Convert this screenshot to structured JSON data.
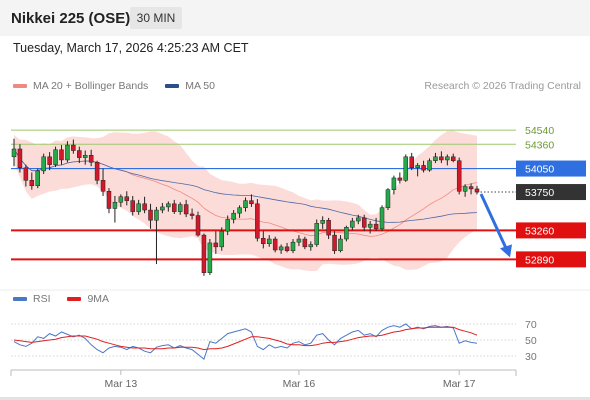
{
  "header": {
    "title": "Nikkei 225 (OSE)",
    "timeframe": "30 MIN",
    "datetime": "Tuesday, March 17, 2026 4:25:23 AM CET"
  },
  "legend": {
    "items": [
      {
        "label": "MA 20 + Bollinger Bands",
        "color": "#f08a80"
      },
      {
        "label": "MA 50",
        "color": "#2c4f8c"
      }
    ],
    "copyright": "Research © 2026 Trading Central"
  },
  "rsi_legend": {
    "items": [
      {
        "label": "RSI",
        "color": "#4a78c8"
      },
      {
        "label": "9MA",
        "color": "#e02020"
      }
    ]
  },
  "chart_data": {
    "type": "candlestick",
    "x_tick_labels": [
      "Mar 13",
      "Mar 16",
      "Mar 17"
    ],
    "y_range": [
      52550,
      54900
    ],
    "levels": [
      {
        "label": "54540",
        "value": 54540,
        "kind": "target",
        "color": "#9dc86a"
      },
      {
        "label": "54360",
        "value": 54360,
        "kind": "target",
        "color": "#9dc86a"
      },
      {
        "label": "54050",
        "value": 54050,
        "kind": "pivot",
        "color": "#2f6fdf"
      },
      {
        "label": "53750",
        "value": 53750,
        "kind": "last_price",
        "color": "#333333"
      },
      {
        "label": "53260",
        "value": 53260,
        "kind": "support",
        "color": "#e01010"
      },
      {
        "label": "52890",
        "value": 52890,
        "kind": "support",
        "color": "#e01010"
      }
    ],
    "forecast_arrow": {
      "from": 53750,
      "to": 52890,
      "color": "#2f6fdf"
    },
    "candles": [
      [
        54200,
        54430,
        54080,
        54300
      ],
      [
        54300,
        54360,
        54000,
        54060
      ],
      [
        54060,
        54100,
        53820,
        53900
      ],
      [
        53900,
        54000,
        53780,
        53830
      ],
      [
        53830,
        54050,
        53800,
        54020
      ],
      [
        54020,
        54240,
        53980,
        54200
      ],
      [
        54200,
        54260,
        54030,
        54100
      ],
      [
        54100,
        54330,
        54070,
        54290
      ],
      [
        54290,
        54350,
        54100,
        54160
      ],
      [
        54160,
        54400,
        54130,
        54350
      ],
      [
        54350,
        54420,
        54240,
        54280
      ],
      [
        54280,
        54330,
        54120,
        54190
      ],
      [
        54190,
        54280,
        54100,
        54220
      ],
      [
        54220,
        54290,
        54080,
        54130
      ],
      [
        54130,
        54150,
        53850,
        53900
      ],
      [
        53900,
        54050,
        53700,
        53760
      ],
      [
        53760,
        53800,
        53480,
        53540
      ],
      [
        53540,
        53700,
        53360,
        53620
      ],
      [
        53620,
        53720,
        53560,
        53690
      ],
      [
        53690,
        53760,
        53580,
        53640
      ],
      [
        53640,
        53700,
        53450,
        53500
      ],
      [
        53500,
        53650,
        53460,
        53600
      ],
      [
        53600,
        53690,
        53480,
        53520
      ],
      [
        53520,
        53600,
        53280,
        53390
      ],
      [
        53390,
        53560,
        52830,
        53520
      ],
      [
        53520,
        53610,
        53480,
        53560
      ],
      [
        53560,
        53630,
        53500,
        53600
      ],
      [
        53600,
        53650,
        53470,
        53500
      ],
      [
        53500,
        53620,
        53460,
        53590
      ],
      [
        53590,
        53650,
        53430,
        53470
      ],
      [
        53470,
        53540,
        53400,
        53450
      ],
      [
        53450,
        53500,
        53180,
        53200
      ],
      [
        53200,
        53220,
        52680,
        52720
      ],
      [
        52720,
        53150,
        52690,
        53100
      ],
      [
        53100,
        53250,
        52960,
        53050
      ],
      [
        53050,
        53300,
        53000,
        53250
      ],
      [
        53250,
        53450,
        53200,
        53400
      ],
      [
        53400,
        53520,
        53350,
        53480
      ],
      [
        53480,
        53580,
        53420,
        53550
      ],
      [
        53550,
        53680,
        53500,
        53640
      ],
      [
        53640,
        53720,
        53560,
        53600
      ],
      [
        53600,
        53660,
        53120,
        53160
      ],
      [
        53160,
        53250,
        53030,
        53090
      ],
      [
        53090,
        53200,
        53050,
        53150
      ],
      [
        53150,
        53180,
        52980,
        53010
      ],
      [
        53010,
        53080,
        52960,
        53050
      ],
      [
        53050,
        53100,
        52980,
        53000
      ],
      [
        53000,
        53150,
        52970,
        53110
      ],
      [
        53110,
        53200,
        53060,
        53150
      ],
      [
        53150,
        53180,
        53020,
        53050
      ],
      [
        53050,
        53120,
        53000,
        53080
      ],
      [
        53080,
        53400,
        53050,
        53350
      ],
      [
        53350,
        53440,
        53280,
        53390
      ],
      [
        53390,
        53420,
        53150,
        53200
      ],
      [
        53200,
        53250,
        52960,
        53000
      ],
      [
        53000,
        53200,
        52980,
        53150
      ],
      [
        53150,
        53320,
        53120,
        53300
      ],
      [
        53300,
        53420,
        53260,
        53380
      ],
      [
        53380,
        53460,
        53340,
        53420
      ],
      [
        53420,
        53460,
        53250,
        53300
      ],
      [
        53300,
        53380,
        53220,
        53340
      ],
      [
        53340,
        53420,
        53250,
        53280
      ],
      [
        53280,
        53580,
        53250,
        53550
      ],
      [
        53550,
        53800,
        53520,
        53780
      ],
      [
        53780,
        53960,
        53720,
        53930
      ],
      [
        53930,
        54000,
        53860,
        53900
      ],
      [
        53900,
        54230,
        53880,
        54200
      ],
      [
        54200,
        54250,
        54030,
        54060
      ],
      [
        54060,
        54120,
        53950,
        54090
      ],
      [
        54090,
        54150,
        54000,
        54030
      ],
      [
        54030,
        54180,
        54010,
        54150
      ],
      [
        54150,
        54250,
        54120,
        54200
      ],
      [
        54200,
        54270,
        54120,
        54160
      ],
      [
        54160,
        54230,
        54090,
        54200
      ],
      [
        54200,
        54240,
        54130,
        54150
      ],
      [
        54150,
        54190,
        53720,
        53760
      ],
      [
        53760,
        53850,
        53690,
        53820
      ],
      [
        53820,
        53860,
        53720,
        53790
      ],
      [
        53790,
        53830,
        53720,
        53750
      ]
    ],
    "rsi_axis_labels": [
      "70",
      "50",
      "30"
    ],
    "rsi_range": [
      20,
      80
    ],
    "rsi_values": [
      48,
      44,
      42,
      46,
      54,
      52,
      58,
      55,
      60,
      57,
      54,
      56,
      52,
      44,
      38,
      34,
      40,
      42,
      41,
      38,
      42,
      40,
      36,
      34,
      41,
      43,
      44,
      40,
      43,
      40,
      38,
      32,
      26,
      48,
      46,
      52,
      58,
      60,
      62,
      64,
      60,
      42,
      38,
      44,
      40,
      42,
      40,
      46,
      48,
      44,
      46,
      56,
      58,
      50,
      44,
      52,
      56,
      60,
      62,
      56,
      58,
      54,
      62,
      66,
      68,
      66,
      70,
      64,
      66,
      64,
      67,
      68,
      66,
      67,
      65,
      46,
      49,
      47,
      46
    ],
    "rsi_ma_values": [
      50,
      49,
      48,
      47,
      48,
      49,
      50,
      51,
      53,
      54,
      55,
      55,
      55,
      53,
      51,
      48,
      46,
      44,
      42,
      41,
      40,
      40,
      40,
      39,
      39,
      39,
      40,
      40,
      41,
      41,
      41,
      40,
      38,
      39,
      39,
      40,
      42,
      45,
      48,
      51,
      54,
      54,
      53,
      52,
      50,
      48,
      45,
      44,
      44,
      43,
      43,
      44,
      46,
      47,
      47,
      48,
      49,
      51,
      53,
      54,
      55,
      55,
      56,
      58,
      60,
      61,
      63,
      64,
      65,
      65,
      66,
      66,
      66,
      66,
      66,
      63,
      61,
      59,
      56
    ]
  }
}
